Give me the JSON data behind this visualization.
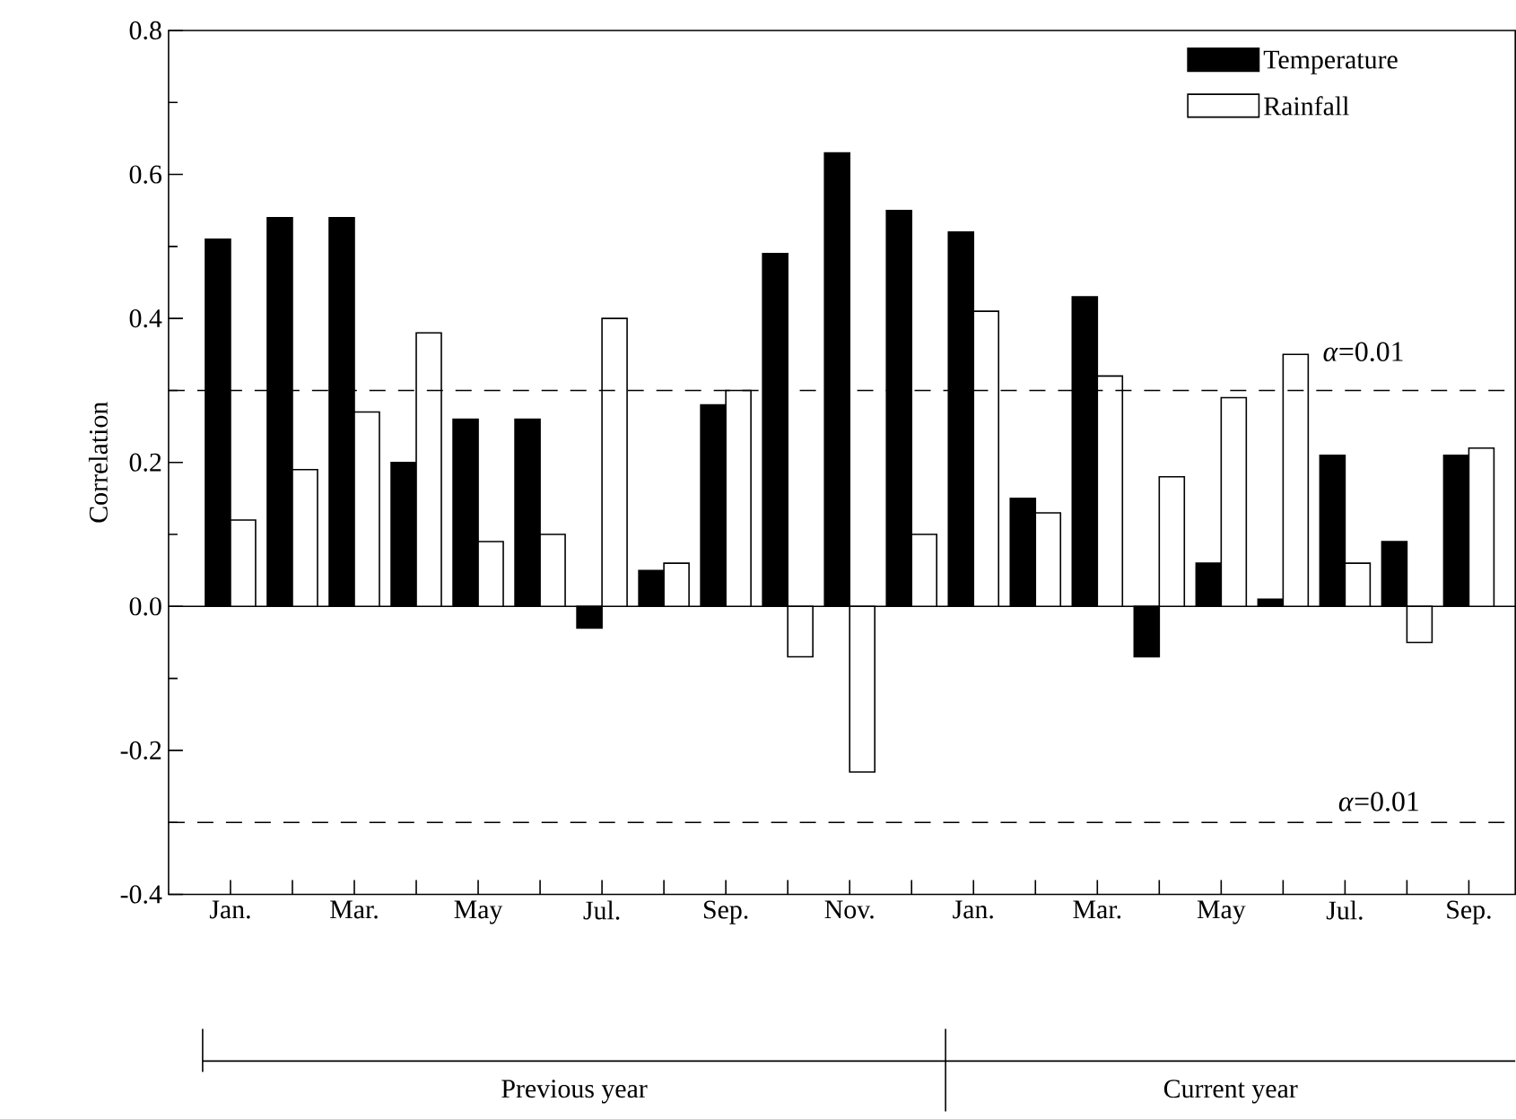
{
  "chart_data": {
    "type": "bar",
    "ylabel": "Correlation",
    "categories": [
      "Jan.",
      null,
      "Mar.",
      null,
      "May",
      null,
      "Jul.",
      null,
      "Sep.",
      null,
      "Nov.",
      null,
      "Jan.",
      null,
      "Mar.",
      null,
      "May",
      null,
      "Jul.",
      null,
      "Sep."
    ],
    "series": [
      {
        "name": "Temperature",
        "color": "#000000",
        "values": [
          0.51,
          0.54,
          0.54,
          0.2,
          0.26,
          0.26,
          -0.03,
          0.05,
          0.28,
          0.49,
          0.63,
          0.55,
          0.52,
          0.15,
          0.43,
          -0.07,
          0.06,
          0.01,
          0.21,
          0.09,
          0.21
        ]
      },
      {
        "name": "Rainfall",
        "color": "#ffffff",
        "values": [
          0.12,
          0.19,
          0.27,
          0.38,
          0.09,
          0.1,
          0.4,
          0.06,
          0.3,
          -0.07,
          -0.23,
          0.1,
          0.41,
          0.13,
          0.32,
          0.18,
          0.29,
          0.35,
          0.06,
          -0.05,
          0.22
        ]
      }
    ],
    "ylim": [
      -0.4,
      0.8
    ],
    "yticks": [
      {
        "value": -0.4,
        "label": "-0.4"
      },
      {
        "value": -0.2,
        "label": "-0.2"
      },
      {
        "value": 0,
        "label": "0.0"
      },
      {
        "value": 0.2,
        "label": "0.2"
      },
      {
        "value": 0.4,
        "label": "0.4"
      },
      {
        "value": 0.6,
        "label": "0.6"
      },
      {
        "value": 0.8,
        "label": "0.8"
      }
    ],
    "ref_lines": [
      {
        "axis": "y",
        "value": 0.3,
        "line_style": "dashed"
      },
      {
        "axis": "y",
        "value": -0.3,
        "line_style": "dashed"
      }
    ],
    "annotations": [
      "Previous year",
      "Current year",
      {
        "text": "*α*=0.01",
        "y": 0.3
      },
      {
        "text": "*α*=0.01",
        "y": -0.3
      }
    ],
    "legend": "top right"
  }
}
